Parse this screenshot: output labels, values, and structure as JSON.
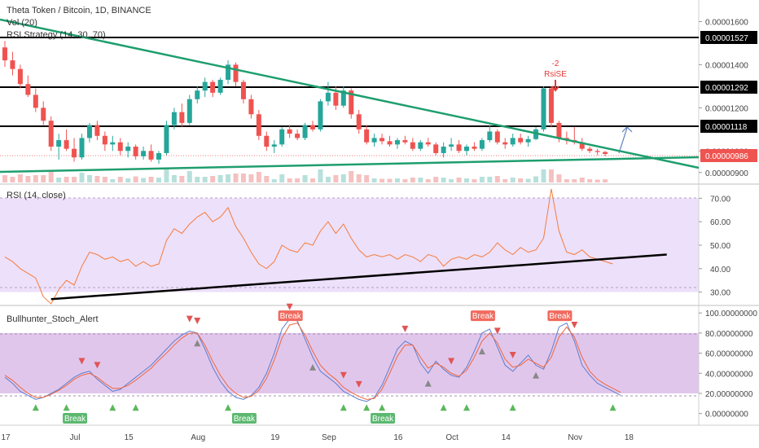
{
  "header": {
    "symbol": "Theta Token / Bitcoin, 1D, BINANCE",
    "indicator_1": "Vol (20)",
    "indicator_2": "RSI Strategy (14, 30, 70)"
  },
  "colors": {
    "up": "#26a69a",
    "down": "#ef5350",
    "trendline": "#1e9e6e",
    "support": "#000000",
    "rsi_line": "#f57c3c",
    "rsi_band": "#ede0fa",
    "stoch_band": "#e1c6ec",
    "stoch_k": "#5b7fcc",
    "stoch_d": "#f0663a",
    "marker_up": "#5cb85c",
    "marker_down": "#e05555",
    "marker_flat": "#888888"
  },
  "price_levels": [
    {
      "label": "0.00001527"
    },
    {
      "label": "0.00001292"
    },
    {
      "label": "0.00001118"
    }
  ],
  "last_price": "0.00000986",
  "annotations": {
    "signal": "RsiSE",
    "signal_qty": "-2"
  },
  "panes": {
    "rsi_title": "RSI (14, close)",
    "stoch_title": "Bullhunter_Stoch_Alert",
    "break_label": "Break"
  },
  "chart_data": [
    {
      "type": "candlestick",
      "title": "Theta Token / Bitcoin, 1D, BINANCE",
      "ylim": [
        8.5e-06,
        1.7e-05
      ],
      "y_ticks": [
        "0.00001600",
        "0.00001400",
        "0.00001200",
        "0.00001000",
        "0.00000900"
      ],
      "x_ticks": [
        "17",
        "Jul",
        "15",
        "Aug",
        "19",
        "Sep",
        "16",
        "Oct",
        "14",
        "Nov",
        "18"
      ],
      "ohlc": [
        [
          1.48e-05,
          1.51e-05,
          1.39e-05,
          1.42e-05
        ],
        [
          1.42e-05,
          1.46e-05,
          1.35e-05,
          1.38e-05
        ],
        [
          1.38e-05,
          1.4e-05,
          1.29e-05,
          1.31e-05
        ],
        [
          1.31e-05,
          1.35e-05,
          1.25e-05,
          1.26e-05
        ],
        [
          1.26e-05,
          1.29e-05,
          1.18e-05,
          1.2e-05
        ],
        [
          1.2e-05,
          1.23e-05,
          1.12e-05,
          1.14e-05
        ],
        [
          1.14e-05,
          1.16e-05,
          1e-05,
          1.02e-05
        ],
        [
          1.02e-05,
          1.08e-05,
          9.6e-06,
          1.05e-05
        ],
        [
          1.05e-05,
          1.1e-05,
          1e-05,
          1.01e-05
        ],
        [
          1.01e-05,
          1.06e-05,
          9.5e-06,
          9.7e-06
        ],
        [
          9.7e-06,
          1.08e-05,
          9.6e-06,
          1.06e-05
        ],
        [
          1.06e-05,
          1.13e-05,
          1.04e-05,
          1.12e-05
        ],
        [
          1.12e-05,
          1.14e-05,
          1.05e-05,
          1.07e-05
        ],
        [
          1.07e-05,
          1.09e-05,
          1e-05,
          1.03e-05
        ],
        [
          1.03e-05,
          1.07e-05,
          1e-05,
          1.04e-05
        ],
        [
          1.04e-05,
          1.06e-05,
          9.8e-06,
          1e-05
        ],
        [
          1e-05,
          1.04e-05,
          9.7e-06,
          1.02e-05
        ],
        [
          1.02e-05,
          1.03e-05,
          9.6e-06,
          9.75e-06
        ],
        [
          9.75e-06,
          1.02e-05,
          9.6e-06,
          1e-05
        ],
        [
          1e-05,
          1.03e-05,
          9.5e-06,
          9.6e-06
        ],
        [
          9.6e-06,
          1e-05,
          9.4e-06,
          9.9e-06
        ],
        [
          9.9e-06,
          1.14e-05,
          9.8e-06,
          1.12e-05
        ],
        [
          1.12e-05,
          1.2e-05,
          1.1e-05,
          1.18e-05
        ],
        [
          1.18e-05,
          1.22e-05,
          1.11e-05,
          1.13e-05
        ],
        [
          1.13e-05,
          1.26e-05,
          1.12e-05,
          1.24e-05
        ],
        [
          1.24e-05,
          1.3e-05,
          1.22e-05,
          1.28e-05
        ],
        [
          1.28e-05,
          1.34e-05,
          1.25e-05,
          1.32e-05
        ],
        [
          1.32e-05,
          1.33e-05,
          1.25e-05,
          1.27e-05
        ],
        [
          1.27e-05,
          1.34e-05,
          1.26e-05,
          1.33e-05
        ],
        [
          1.33e-05,
          1.42e-05,
          1.31e-05,
          1.4e-05
        ],
        [
          1.4e-05,
          1.41e-05,
          1.3e-05,
          1.32e-05
        ],
        [
          1.32e-05,
          1.33e-05,
          1.22e-05,
          1.24e-05
        ],
        [
          1.24e-05,
          1.26e-05,
          1.15e-05,
          1.17e-05
        ],
        [
          1.17e-05,
          1.19e-05,
          1.05e-05,
          1.07e-05
        ],
        [
          1.07e-05,
          1.09e-05,
          1e-05,
          1.02e-05
        ],
        [
          1.02e-05,
          1.05e-05,
          9.9e-06,
          1.03e-05
        ],
        [
          1.03e-05,
          1.11e-05,
          1.02e-05,
          1.1e-05
        ],
        [
          1.1e-05,
          1.12e-05,
          1.06e-05,
          1.08e-05
        ],
        [
          1.08e-05,
          1.1e-05,
          1.05e-05,
          1.06e-05
        ],
        [
          1.06e-05,
          1.13e-05,
          1.05e-05,
          1.12e-05
        ],
        [
          1.12e-05,
          1.14e-05,
          1.09e-05,
          1.1e-05
        ],
        [
          1.1e-05,
          1.24e-05,
          1.09e-05,
          1.23e-05
        ],
        [
          1.23e-05,
          1.32e-05,
          1.21e-05,
          1.27e-05
        ],
        [
          1.27e-05,
          1.3e-05,
          1.19e-05,
          1.21e-05
        ],
        [
          1.21e-05,
          1.3e-05,
          1.2e-05,
          1.28e-05
        ],
        [
          1.28e-05,
          1.29e-05,
          1.15e-05,
          1.17e-05
        ],
        [
          1.17e-05,
          1.19e-05,
          1.08e-05,
          1.1e-05
        ],
        [
          1.1e-05,
          1.12e-05,
          1.03e-05,
          1.04e-05
        ],
        [
          1.04e-05,
          1.08e-05,
          1.02e-05,
          1.06e-05
        ],
        [
          1.06e-05,
          1.08e-05,
          1.03e-05,
          1.045e-05
        ],
        [
          1.045e-05,
          1.07e-05,
          1.02e-05,
          1.03e-05
        ],
        [
          1.03e-05,
          1.06e-05,
          1.01e-05,
          1.05e-05
        ],
        [
          1.05e-05,
          1.07e-05,
          1.03e-05,
          1.04e-05
        ],
        [
          1.04e-05,
          1.06e-05,
          1e-05,
          1.01e-05
        ],
        [
          1.01e-05,
          1.05e-05,
          1e-05,
          1.04e-05
        ],
        [
          1.04e-05,
          1.06e-05,
          1.02e-05,
          1.03e-05
        ],
        [
          1.03e-05,
          1.04e-05,
          9.8e-06,
          9.9e-06
        ],
        [
          9.9e-06,
          1.04e-05,
          9.7e-06,
          1.02e-05
        ],
        [
          1.02e-05,
          1.06e-05,
          1e-05,
          1.03e-05
        ],
        [
          1.03e-05,
          1.05e-05,
          9.9e-06,
          1e-05
        ],
        [
          1e-05,
          1.03e-05,
          9.8e-06,
          1.02e-05
        ],
        [
          1.02e-05,
          1.04e-05,
          1e-05,
          1.01e-05
        ],
        [
          1.01e-05,
          1.06e-05,
          1e-05,
          1.05e-05
        ],
        [
          1.05e-05,
          1.12e-05,
          1.04e-05,
          1.09e-05
        ],
        [
          1.09e-05,
          1.1e-05,
          1.03e-05,
          1.04e-05
        ],
        [
          1.04e-05,
          1.06e-05,
          1.01e-05,
          1.03e-05
        ],
        [
          1.03e-05,
          1.08e-05,
          1.02e-05,
          1.06e-05
        ],
        [
          1.06e-05,
          1.08e-05,
          1.03e-05,
          1.04e-05
        ],
        [
          1.04e-05,
          1.07e-05,
          1.02e-05,
          1.055e-05
        ],
        [
          1.055e-05,
          1.11e-05,
          1.05e-05,
          1.1e-05
        ],
        [
          1.1e-05,
          1.3e-05,
          1.09e-05,
          1.29e-05
        ],
        [
          1.29e-05,
          1.3e-05,
          1.11e-05,
          1.13e-05
        ],
        [
          1.13e-05,
          1.14e-05,
          1.04e-05,
          1.06e-05
        ],
        [
          1.06e-05,
          1.09e-05,
          1.03e-05,
          1.05e-05
        ],
        [
          1.05e-05,
          1.11e-05,
          1.03e-05,
          1.04e-05
        ],
        [
          1.04e-05,
          1.06e-05,
          1e-05,
          1.01e-05
        ],
        [
          1.01e-05,
          1.02e-05,
          9.9e-06,
          1e-05
        ],
        [
          1e-05,
          1.01e-05,
          9.8e-06,
          9.95e-06
        ],
        [
          9.95e-06,
          1e-05,
          9.75e-06,
          9.86e-06
        ]
      ]
    },
    {
      "type": "line",
      "title": "RSI (14, close)",
      "ylim": [
        25,
        75
      ],
      "y_ticks": [
        "70.00",
        "60.00",
        "50.00",
        "40.00",
        "30.00"
      ],
      "band": [
        30,
        70
      ],
      "values": [
        45,
        43,
        40,
        38,
        36,
        28,
        25,
        31,
        35,
        33,
        41,
        47,
        46,
        44,
        45,
        43,
        44,
        41,
        43,
        41,
        42,
        52,
        57,
        55,
        59,
        62,
        64,
        60,
        62,
        66,
        58,
        53,
        47,
        42,
        40,
        43,
        50,
        48,
        47,
        51,
        50,
        56,
        60,
        55,
        59,
        53,
        48,
        45,
        46,
        45,
        46,
        44,
        46,
        45,
        43,
        46,
        45,
        41,
        44,
        45,
        44,
        46,
        45,
        47,
        51,
        48,
        46,
        49,
        47,
        48,
        53,
        74,
        56,
        47,
        46,
        48,
        45,
        44,
        43,
        42
      ],
      "trendline": [
        [
          6,
          27
        ],
        [
          86,
          46
        ]
      ]
    },
    {
      "type": "line",
      "title": "Bullhunter_Stoch_Alert",
      "ylim": [
        -10,
        105
      ],
      "y_ticks": [
        "100.00000000",
        "80.00000000",
        "60.00000000",
        "40.00000000",
        "20.00000000",
        "0.00000000"
      ],
      "band": [
        20,
        80
      ],
      "series": [
        {
          "values": [
            36,
            30,
            22,
            18,
            14,
            16,
            20,
            24,
            30,
            36,
            40,
            42,
            34,
            28,
            22,
            24,
            30,
            36,
            42,
            48,
            56,
            64,
            72,
            78,
            82,
            80,
            64,
            46,
            32,
            22,
            16,
            14,
            18,
            26,
            40,
            60,
            84,
            94,
            92,
            74,
            56,
            42,
            36,
            30,
            22,
            18,
            14,
            12,
            16,
            28,
            46,
            64,
            72,
            68,
            50,
            40,
            52,
            44,
            38,
            36,
            46,
            62,
            80,
            84,
            66,
            48,
            42,
            50,
            58,
            48,
            44,
            62,
            86,
            90,
            72,
            48,
            38,
            30,
            26,
            22,
            18
          ]
        },
        {
          "values": [
            38,
            33,
            26,
            20,
            16,
            16,
            19,
            23,
            28,
            34,
            38,
            40,
            36,
            30,
            25,
            25,
            28,
            33,
            39,
            45,
            53,
            60,
            68,
            75,
            80,
            80,
            68,
            52,
            38,
            27,
            20,
            16,
            17,
            23,
            35,
            53,
            75,
            88,
            90,
            78,
            62,
            48,
            40,
            34,
            26,
            21,
            17,
            14,
            15,
            24,
            40,
            57,
            68,
            68,
            56,
            45,
            50,
            46,
            40,
            37,
            43,
            56,
            72,
            80,
            70,
            54,
            46,
            48,
            54,
            50,
            46,
            56,
            76,
            86,
            76,
            56,
            42,
            34,
            29,
            25,
            21
          ]
        }
      ],
      "alerts": [
        "Break",
        "Break",
        "Break",
        "Break",
        "Break",
        "Break",
        "Break"
      ]
    }
  ]
}
